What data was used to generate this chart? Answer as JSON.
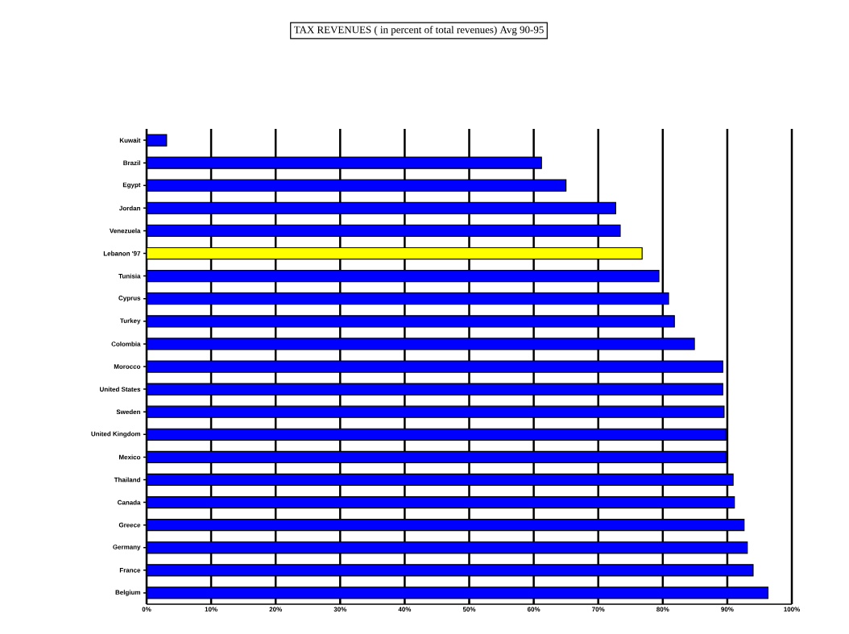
{
  "chart_data": {
    "type": "bar",
    "orientation": "horizontal",
    "title": "TAX REVENUES ( in percent of total revenues) Avg 90-95",
    "categories": [
      "Kuwait",
      "Brazil",
      "Egypt",
      "Jordan",
      "Venezuela",
      "Lebanon '97",
      "Tunisia",
      "Cyprus",
      "Turkey",
      "Colombia",
      "Morocco",
      "United States",
      "Sweden",
      "United Kingdom",
      "Mexico",
      "Thailand",
      "Canada",
      "Greece",
      "Germany",
      "France",
      "Belgium"
    ],
    "values": [
      3.1,
      61.2,
      65.0,
      72.7,
      73.4,
      76.8,
      79.4,
      80.9,
      81.8,
      84.9,
      89.3,
      89.3,
      89.5,
      89.8,
      89.8,
      90.9,
      91.1,
      92.6,
      93.1,
      94.0,
      96.3
    ],
    "colors": [
      "#0000ff",
      "#0000ff",
      "#0000ff",
      "#0000ff",
      "#0000ff",
      "#ffff00",
      "#0000ff",
      "#0000ff",
      "#0000ff",
      "#0000ff",
      "#0000ff",
      "#0000ff",
      "#0000ff",
      "#0000ff",
      "#0000ff",
      "#0000ff",
      "#0000ff",
      "#0000ff",
      "#0000ff",
      "#0000ff",
      "#0000ff"
    ],
    "xlim": [
      0,
      100
    ],
    "xticks": [
      {
        "value": 0,
        "label": "0%"
      },
      {
        "value": 10,
        "label": "10%"
      },
      {
        "value": 20,
        "label": "20%"
      },
      {
        "value": 30,
        "label": "30%"
      },
      {
        "value": 40,
        "label": "40%"
      },
      {
        "value": 50,
        "label": "50%"
      },
      {
        "value": 60,
        "label": "60%"
      },
      {
        "value": 70,
        "label": "70%"
      },
      {
        "value": 80,
        "label": "80%"
      },
      {
        "value": 90,
        "label": "90%"
      },
      {
        "value": 100,
        "label": "100%"
      }
    ],
    "grid": "x"
  }
}
